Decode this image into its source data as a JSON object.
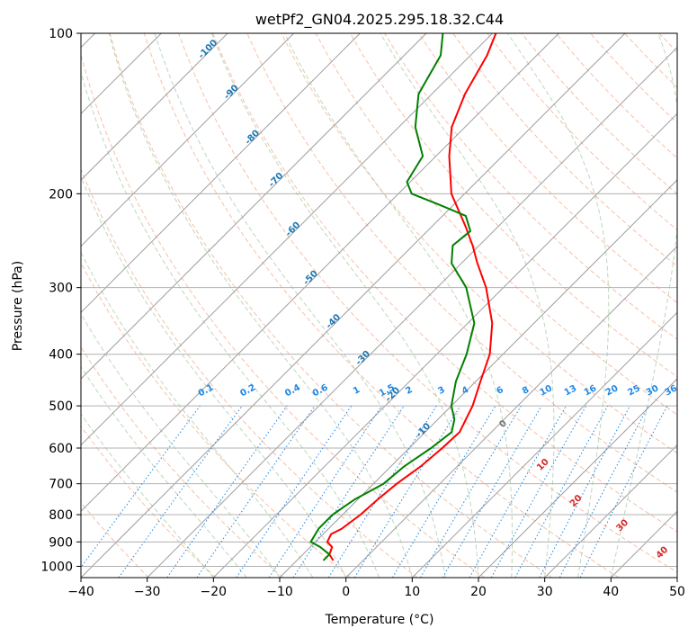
{
  "chart_data": {
    "type": "skew-t",
    "title": "wetPf2_GN04.2025.295.18.32.C44",
    "xlabel": "Temperature (°C)",
    "ylabel": "Pressure (hPa)",
    "xlim": [
      -40,
      50
    ],
    "ylim": [
      1050,
      100
    ],
    "x_ticks": [
      -40,
      -30,
      -20,
      -10,
      0,
      10,
      20,
      30,
      40,
      50
    ],
    "y_ticks": [
      100,
      200,
      300,
      400,
      500,
      600,
      700,
      800,
      900,
      1000
    ],
    "grid": true,
    "series": [
      {
        "name": "temperature",
        "color": "#ff0000",
        "points": [
          [
            975,
            -4.5
          ],
          [
            950,
            -6.0
          ],
          [
            920,
            -6.7
          ],
          [
            900,
            -8.2
          ],
          [
            870,
            -8.8
          ],
          [
            850,
            -8.0
          ],
          [
            800,
            -7.3
          ],
          [
            750,
            -7.0
          ],
          [
            700,
            -6.5
          ],
          [
            650,
            -5.5
          ],
          [
            600,
            -5.0
          ],
          [
            560,
            -4.8
          ],
          [
            500,
            -6.8
          ],
          [
            450,
            -9.3
          ],
          [
            400,
            -12.0
          ],
          [
            350,
            -16.3
          ],
          [
            300,
            -22.6
          ],
          [
            270,
            -27.6
          ],
          [
            250,
            -31.0
          ],
          [
            230,
            -35.0
          ],
          [
            200,
            -42.0
          ],
          [
            170,
            -48.0
          ],
          [
            150,
            -52.0
          ],
          [
            130,
            -55.0
          ],
          [
            110,
            -57.5
          ],
          [
            100,
            -59.5
          ]
        ]
      },
      {
        "name": "dewpoint",
        "color": "#008000",
        "points": [
          [
            975,
            -6.0
          ],
          [
            950,
            -6.0
          ],
          [
            920,
            -8.5
          ],
          [
            900,
            -10.7
          ],
          [
            850,
            -11.5
          ],
          [
            800,
            -11.5
          ],
          [
            750,
            -10.5
          ],
          [
            700,
            -8.5
          ],
          [
            650,
            -8.0
          ],
          [
            600,
            -6.7
          ],
          [
            560,
            -6.0
          ],
          [
            530,
            -7.5
          ],
          [
            500,
            -10.0
          ],
          [
            450,
            -13.0
          ],
          [
            400,
            -15.5
          ],
          [
            350,
            -19.0
          ],
          [
            300,
            -25.6
          ],
          [
            270,
            -31.5
          ],
          [
            250,
            -34.0
          ],
          [
            235,
            -33.5
          ],
          [
            220,
            -36.5
          ],
          [
            210,
            -42.0
          ],
          [
            200,
            -48.0
          ],
          [
            190,
            -50.5
          ],
          [
            170,
            -52.0
          ],
          [
            150,
            -57.5
          ],
          [
            130,
            -62.0
          ],
          [
            110,
            -64.5
          ],
          [
            100,
            -67.5
          ]
        ]
      }
    ],
    "mixing_ratio_lines": {
      "values": [
        0.1,
        0.2,
        0.4,
        0.6,
        1,
        1.5,
        2,
        3,
        4,
        6,
        8,
        10,
        13,
        16,
        20,
        25,
        30,
        36
      ],
      "labels": [
        "0.1",
        "0.2",
        "0.4",
        "0.6",
        "1",
        "1.5",
        "2",
        "3",
        "4",
        "6",
        "8",
        "10",
        "13",
        "16",
        "20",
        "25",
        "30",
        "36"
      ],
      "color": "#1e88e5",
      "label_pressure": 480
    },
    "isotherm_labels": {
      "values": [
        -100,
        -90,
        -80,
        -70,
        -60,
        -50,
        -40,
        -30,
        -20,
        -10
      ],
      "labels": [
        "-100",
        "-90",
        "-80",
        "-70",
        "-60",
        "-50",
        "-40",
        "-30",
        "-20",
        "-10"
      ],
      "color": "#1f77b4"
    },
    "dry_adiabat_labels": {
      "values": [
        0,
        10,
        20,
        30,
        40
      ],
      "labels": [
        "0",
        "10",
        "20",
        "30",
        "40"
      ],
      "colors": [
        "#777777",
        "#d62728",
        "#d62728",
        "#d62728",
        "#d62728"
      ]
    }
  }
}
